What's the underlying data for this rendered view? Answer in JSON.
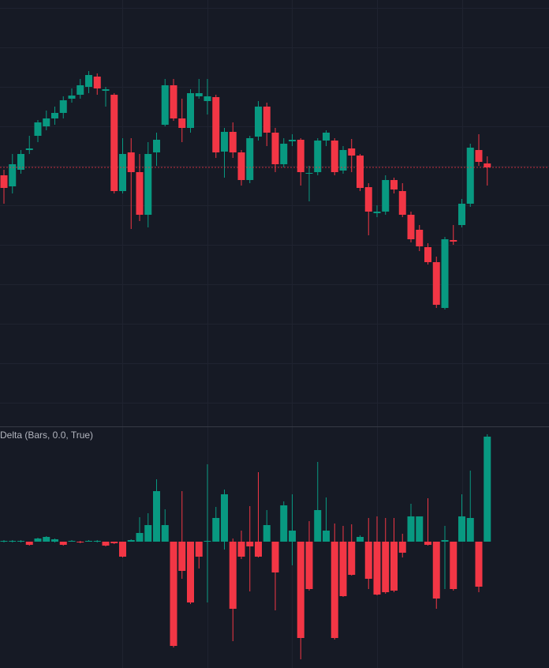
{
  "chart_data": [
    {
      "type": "candlestick",
      "ylim": [
        0,
        540
      ],
      "grid": true,
      "price_line": true,
      "up_color": "#089981",
      "down_color": "#f23645",
      "open": [
        318,
        304,
        325,
        350,
        368,
        380,
        390,
        397,
        415,
        420,
        430,
        443,
        425,
        420,
        298,
        347,
        322,
        268,
        347,
        382,
        432,
        390,
        378,
        418,
        412,
        417,
        348,
        373,
        347,
        312,
        367,
        405,
        372,
        332,
        361,
        363,
        320,
        322,
        362,
        362,
        324,
        352,
        343,
        303,
        270,
        272,
        312,
        298,
        268,
        249,
        227,
        208,
        150,
        236,
        255,
        282,
        350,
        333
      ],
      "high": [
        325,
        345,
        350,
        368,
        388,
        400,
        405,
        418,
        428,
        440,
        450,
        447,
        430,
        422,
        365,
        365,
        345,
        360,
        372,
        440,
        440,
        415,
        427,
        440,
        440,
        420,
        378,
        385,
        350,
        368,
        412,
        410,
        378,
        365,
        370,
        365,
        330,
        365,
        375,
        365,
        355,
        364,
        345,
        308,
        280,
        318,
        315,
        308,
        272,
        255,
        232,
        215,
        240,
        255,
        288,
        358,
        370,
        342
      ],
      "low": [
        282,
        295,
        320,
        345,
        360,
        375,
        382,
        390,
        410,
        415,
        422,
        420,
        405,
        295,
        295,
        250,
        260,
        252,
        330,
        380,
        387,
        360,
        372,
        415,
        395,
        340,
        315,
        340,
        305,
        308,
        362,
        355,
        322,
        328,
        355,
        305,
        285,
        318,
        355,
        318,
        320,
        322,
        298,
        242,
        265,
        268,
        295,
        265,
        233,
        222,
        205,
        150,
        148,
        230,
        252,
        278,
        330,
        305
      ],
      "close": [
        302,
        332,
        345,
        352,
        385,
        390,
        397,
        413,
        419,
        432,
        445,
        428,
        427,
        298,
        345,
        322,
        268,
        345,
        363,
        432,
        390,
        378,
        422,
        422,
        418,
        347,
        373,
        347,
        312,
        365,
        405,
        372,
        332,
        358,
        363,
        322,
        321,
        362,
        372,
        322,
        350,
        343,
        302,
        272,
        272,
        312,
        300,
        268,
        237,
        228,
        208,
        154,
        237,
        234,
        282,
        353,
        335,
        328
      ]
    },
    {
      "type": "candlestick",
      "title": "Delta (Bars, 0.0, True)",
      "ylim": [
        -160,
        146
      ],
      "up_color": "#089981",
      "down_color": "#f23645",
      "open": [
        0,
        0,
        0,
        0,
        0,
        0,
        0,
        0,
        0,
        0,
        0,
        0,
        0,
        0,
        0,
        0,
        0,
        0,
        0,
        0,
        0,
        0,
        0,
        0,
        0,
        0,
        0,
        0,
        0,
        0,
        0,
        0,
        0,
        0,
        0,
        0,
        0,
        0,
        0,
        0,
        0,
        0,
        0,
        0,
        0,
        0,
        0,
        0,
        0,
        0,
        0,
        0,
        0,
        0,
        0,
        0,
        0,
        0
      ],
      "high": [
        2,
        2,
        2,
        0,
        5,
        7,
        4,
        0,
        2,
        1,
        2,
        2,
        0,
        0,
        0,
        3,
        31,
        36,
        79,
        41,
        0,
        64,
        0,
        0,
        98,
        44,
        66,
        4,
        14,
        45,
        88,
        40,
        0,
        51,
        60,
        0,
        26,
        101,
        56,
        23,
        20,
        22,
        8,
        30,
        32,
        30,
        30,
        10,
        48,
        32,
        55,
        0,
        20,
        0,
        60,
        90,
        0,
        136
      ],
      "low": [
        -1,
        -1,
        -1,
        -5,
        0,
        0,
        -1,
        -5,
        0,
        -2,
        0,
        -1,
        -6,
        -3,
        -20,
        0,
        0,
        0,
        0,
        0,
        -134,
        -47,
        -79,
        -34,
        -77,
        0,
        -10,
        -126,
        -22,
        -63,
        -20,
        0,
        -87,
        0,
        -30,
        -149,
        -62,
        0,
        0,
        -124,
        -70,
        -43,
        0,
        -60,
        -68,
        -66,
        -64,
        -20,
        0,
        0,
        -5,
        -85,
        -60,
        -62,
        0,
        0,
        -64,
        0
      ],
      "close": [
        1,
        1,
        1,
        -4,
        4,
        6,
        3,
        -4,
        1,
        -1,
        1,
        1,
        -5,
        -2,
        -19,
        2,
        11,
        21,
        64,
        21,
        -132,
        -37,
        -77,
        -19,
        1,
        30,
        60,
        -85,
        -19,
        -6,
        -19,
        21,
        -39,
        46,
        14,
        -122,
        -60,
        40,
        14,
        -122,
        -69,
        -42,
        6,
        -47,
        -67,
        -64,
        -62,
        -14,
        32,
        32,
        -4,
        -72,
        2,
        -60,
        32,
        30,
        -57,
        133
      ]
    }
  ]
}
